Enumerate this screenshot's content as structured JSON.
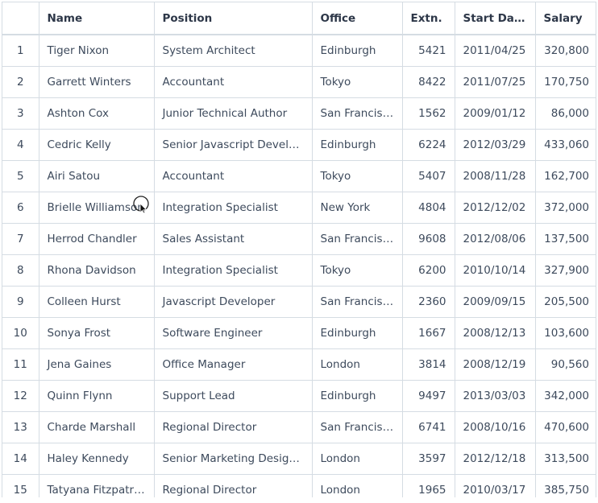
{
  "columns": [
    "",
    "Name",
    "Position",
    "Office",
    "Extn.",
    "Start Date",
    "Salary"
  ],
  "rows": [
    [
      "1",
      "Tiger Nixon",
      "System Architect",
      "Edinburgh",
      "5421",
      "2011/04/25",
      "320,800"
    ],
    [
      "2",
      "Garrett Winters",
      "Accountant",
      "Tokyo",
      "8422",
      "2011/07/25",
      "170,750"
    ],
    [
      "3",
      "Ashton Cox",
      "Junior Technical Author",
      "San Francisco",
      "1562",
      "2009/01/12",
      "86,000"
    ],
    [
      "4",
      "Cedric Kelly",
      "Senior Javascript Developer",
      "Edinburgh",
      "6224",
      "2012/03/29",
      "433,060"
    ],
    [
      "5",
      "Airi Satou",
      "Accountant",
      "Tokyo",
      "5407",
      "2008/11/28",
      "162,700"
    ],
    [
      "6",
      "Brielle Williamson",
      "Integration Specialist",
      "New York",
      "4804",
      "2012/12/02",
      "372,000"
    ],
    [
      "7",
      "Herrod Chandler",
      "Sales Assistant",
      "San Francisco",
      "9608",
      "2012/08/06",
      "137,500"
    ],
    [
      "8",
      "Rhona Davidson",
      "Integration Specialist",
      "Tokyo",
      "6200",
      "2010/10/14",
      "327,900"
    ],
    [
      "9",
      "Colleen Hurst",
      "Javascript Developer",
      "San Francisco",
      "2360",
      "2009/09/15",
      "205,500"
    ],
    [
      "10",
      "Sonya Frost",
      "Software Engineer",
      "Edinburgh",
      "1667",
      "2008/12/13",
      "103,600"
    ],
    [
      "11",
      "Jena Gaines",
      "Office Manager",
      "London",
      "3814",
      "2008/12/19",
      "90,560"
    ],
    [
      "12",
      "Quinn Flynn",
      "Support Lead",
      "Edinburgh",
      "9497",
      "2013/03/03",
      "342,000"
    ],
    [
      "13",
      "Charde Marshall",
      "Regional Director",
      "San Francisco",
      "6741",
      "2008/10/16",
      "470,600"
    ],
    [
      "14",
      "Haley Kennedy",
      "Senior Marketing Designer",
      "London",
      "3597",
      "2012/12/18",
      "313,500"
    ],
    [
      "15",
      "Tatyana Fitzpatrick",
      "Regional Director",
      "London",
      "1965",
      "2010/03/17",
      "385,750"
    ]
  ]
}
